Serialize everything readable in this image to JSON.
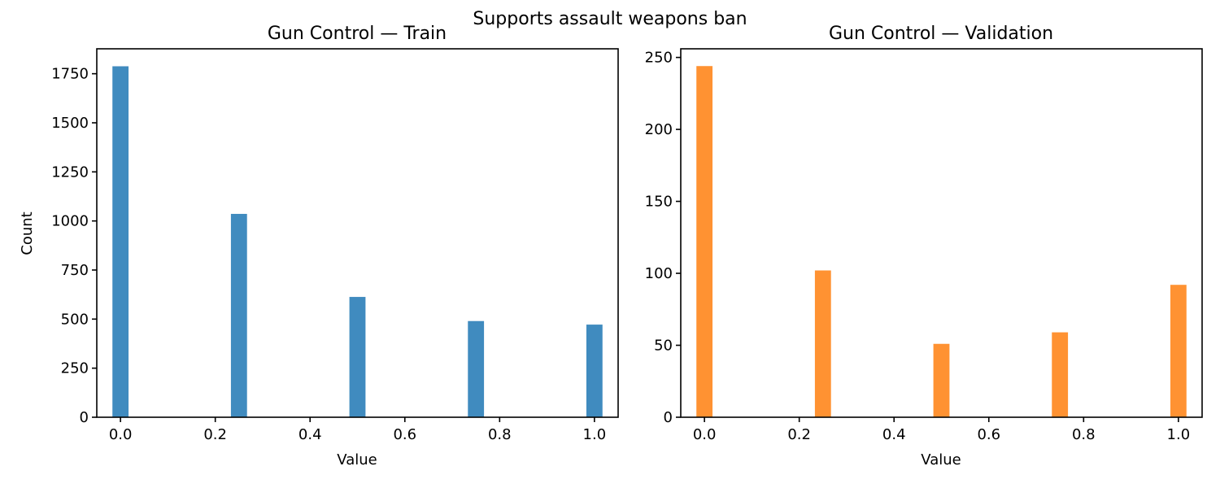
{
  "figure": {
    "suptitle": "Supports assault weapons ban"
  },
  "chart_data": [
    {
      "type": "bar",
      "title": "Gun Control — Train",
      "xlabel": "Value",
      "ylabel": "Count",
      "color": "#1f77b4",
      "x": [
        0.0,
        0.25,
        0.5,
        0.75,
        1.0
      ],
      "values": [
        1788,
        1036,
        613,
        490,
        472
      ],
      "xlim": [
        -0.05,
        1.05
      ],
      "ylim": [
        0,
        1877
      ],
      "xticks": [
        0.0,
        0.2,
        0.4,
        0.6,
        0.8,
        1.0
      ],
      "xtick_labels": [
        "0.0",
        "0.2",
        "0.4",
        "0.6",
        "0.8",
        "1.0"
      ],
      "yticks": [
        0,
        250,
        500,
        750,
        1000,
        1250,
        1500,
        1750
      ],
      "ytick_labels": [
        "0",
        "250",
        "500",
        "750",
        "1000",
        "1250",
        "1500",
        "1750"
      ],
      "grid": false
    },
    {
      "type": "bar",
      "title": "Gun Control — Validation",
      "xlabel": "Value",
      "ylabel": "",
      "color": "#ff7f0e",
      "x": [
        0.0,
        0.25,
        0.5,
        0.75,
        1.0
      ],
      "values": [
        244,
        102,
        51,
        59,
        92
      ],
      "xlim": [
        -0.05,
        1.05
      ],
      "ylim": [
        0,
        256
      ],
      "xticks": [
        0.0,
        0.2,
        0.4,
        0.6,
        0.8,
        1.0
      ],
      "xtick_labels": [
        "0.0",
        "0.2",
        "0.4",
        "0.6",
        "0.8",
        "1.0"
      ],
      "yticks": [
        0,
        50,
        100,
        150,
        200,
        250
      ],
      "ytick_labels": [
        "0",
        "50",
        "100",
        "150",
        "200",
        "250"
      ],
      "grid": false
    }
  ]
}
